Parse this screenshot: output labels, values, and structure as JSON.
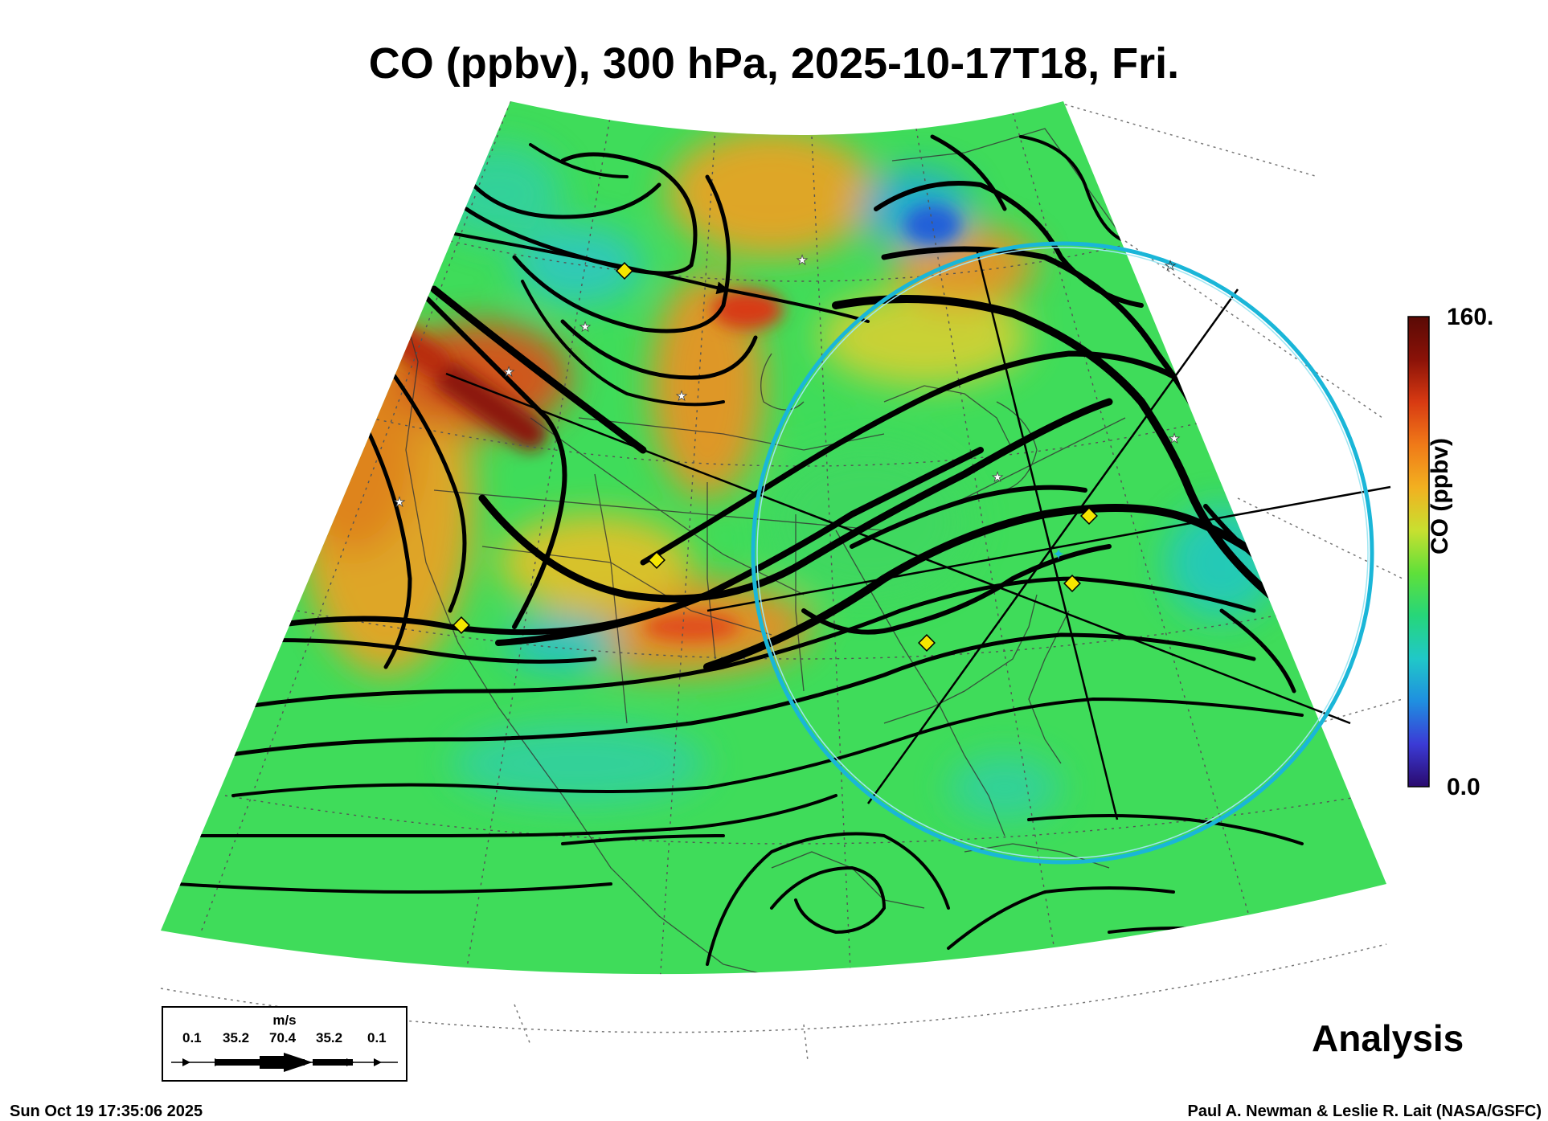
{
  "title": "CO (ppbv), 300 hPa, 2025-10-17T18, Fri.",
  "colorbar": {
    "label": "CO (ppbv)",
    "max_label": "160.",
    "min_label": "0.0",
    "range": [
      0,
      160
    ],
    "stops": [
      "#2a0a6e",
      "#3b3bd6",
      "#1f8fe0",
      "#20c8c8",
      "#26d67a",
      "#5fe03a",
      "#c8e030",
      "#f2b020",
      "#f07a18",
      "#d83a12",
      "#8a1208",
      "#5a0a05"
    ]
  },
  "wind_legend": {
    "unit": "m/s",
    "ticks": [
      "0.1",
      "35.2",
      "70.4",
      "35.2",
      "0.1"
    ]
  },
  "product_label": "Analysis",
  "timestamp": "Sun Oct 19 17:35:06 2025",
  "credit": "Paul A. Newman & Leslie R. Lait (NASA/GSFC)",
  "colors": {
    "field_base": "#3fdc5a",
    "streamline": "#000000",
    "range_ring": "#1ab6d8",
    "site_marker": "#f5e600",
    "station_star": "#ffffff"
  },
  "icons": [
    "yellow-diamond-site-marker",
    "white-star-station-marker",
    "cyan-star-center-marker"
  ]
}
